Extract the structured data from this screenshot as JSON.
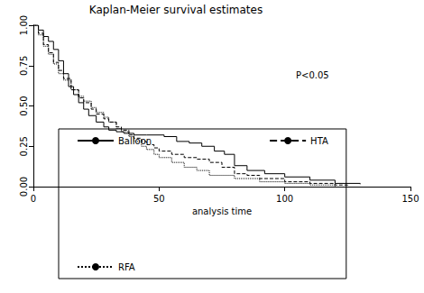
{
  "chart_data": {
    "type": "line",
    "title": "Kaplan-Meier survival estimates",
    "x_label": "analysis time",
    "annotation": "P<0.05",
    "xlim": [
      0,
      150
    ],
    "xticks": [
      0,
      50,
      100,
      150
    ],
    "ylim": [
      0,
      1
    ],
    "yticks": [
      {
        "value": 0,
        "label": "0.00"
      },
      {
        "value": 0.25,
        "label": "0.25"
      },
      {
        "value": 0.5,
        "label": "0.50"
      },
      {
        "value": 0.75,
        "label": "0.75"
      },
      {
        "value": 1,
        "label": "1.00"
      }
    ],
    "grid": false,
    "legend": "bottom",
    "series": [
      {
        "name": "Balloon",
        "color": "#000000",
        "line_style": "solid",
        "x": [
          0,
          2,
          4,
          6,
          8,
          10,
          12,
          14,
          16,
          18,
          20,
          22,
          25,
          28,
          30,
          33,
          36,
          40,
          45,
          52,
          57,
          62,
          67,
          72,
          76,
          80,
          85,
          92,
          100,
          110,
          120,
          130
        ],
        "values": [
          1,
          0.97,
          0.93,
          0.9,
          0.85,
          0.78,
          0.7,
          0.62,
          0.57,
          0.52,
          0.48,
          0.44,
          0.4,
          0.37,
          0.35,
          0.34,
          0.33,
          0.32,
          0.32,
          0.31,
          0.28,
          0.27,
          0.25,
          0.22,
          0.2,
          0.13,
          0.1,
          0.08,
          0.06,
          0.04,
          0.02,
          0.015
        ]
      },
      {
        "name": "HTA",
        "color": "#000000",
        "line_style": "dashed",
        "x": [
          0,
          2,
          4,
          6,
          8,
          10,
          12,
          15,
          18,
          20,
          23,
          25,
          28,
          30,
          33,
          35,
          38,
          40,
          43,
          45,
          48,
          50,
          55,
          60,
          65,
          70,
          75,
          80,
          85,
          90,
          100,
          110,
          120,
          125
        ],
        "values": [
          1,
          0.95,
          0.88,
          0.83,
          0.77,
          0.72,
          0.67,
          0.6,
          0.55,
          0.52,
          0.48,
          0.45,
          0.42,
          0.4,
          0.37,
          0.35,
          0.32,
          0.3,
          0.28,
          0.26,
          0.24,
          0.22,
          0.2,
          0.18,
          0.17,
          0.15,
          0.12,
          0.08,
          0.07,
          0.05,
          0.03,
          0.02,
          0.01,
          0
        ]
      },
      {
        "name": "RFA",
        "color": "#000000",
        "line_style": "dotted",
        "x": [
          0,
          2,
          4,
          6,
          8,
          10,
          12,
          15,
          18,
          20,
          23,
          25,
          28,
          30,
          33,
          35,
          38,
          40,
          43,
          45,
          48,
          50,
          55,
          60,
          65,
          70,
          80,
          90,
          100,
          110,
          120
        ],
        "values": [
          1,
          0.94,
          0.87,
          0.82,
          0.76,
          0.7,
          0.66,
          0.6,
          0.56,
          0.53,
          0.49,
          0.46,
          0.43,
          0.4,
          0.36,
          0.34,
          0.31,
          0.28,
          0.25,
          0.23,
          0.2,
          0.18,
          0.15,
          0.12,
          0.1,
          0.07,
          0.05,
          0.03,
          0.02,
          0.01,
          0
        ]
      }
    ]
  }
}
